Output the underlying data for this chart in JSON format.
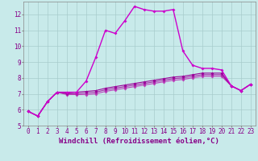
{
  "xlabel": "Windchill (Refroidissement éolien,°C)",
  "xlim": [
    -0.5,
    23.5
  ],
  "ylim": [
    5,
    12.8
  ],
  "yticks": [
    5,
    6,
    7,
    8,
    9,
    10,
    11,
    12
  ],
  "xticks": [
    0,
    1,
    2,
    3,
    4,
    5,
    6,
    7,
    8,
    9,
    10,
    11,
    12,
    13,
    14,
    15,
    16,
    17,
    18,
    19,
    20,
    21,
    22,
    23
  ],
  "background_color": "#c8eaea",
  "grid_color": "#a8cccc",
  "line_color1": "#cc00cc",
  "line_color2": "#990099",
  "line_color3": "#aa22aa",
  "line_color4": "#bb44bb",
  "line1": [
    5.9,
    5.6,
    6.5,
    7.1,
    7.1,
    7.1,
    7.8,
    9.3,
    11.0,
    10.8,
    11.6,
    12.5,
    12.3,
    12.2,
    12.2,
    12.3,
    9.7,
    8.8,
    8.6,
    8.6,
    8.5,
    7.5,
    7.2,
    7.6
  ],
  "line2": [
    5.9,
    5.6,
    6.5,
    7.1,
    7.05,
    7.1,
    7.15,
    7.2,
    7.35,
    7.45,
    7.55,
    7.65,
    7.75,
    7.85,
    7.95,
    8.05,
    8.1,
    8.2,
    8.3,
    8.3,
    8.3,
    7.5,
    7.2,
    7.6
  ],
  "line3": [
    5.9,
    5.6,
    6.5,
    7.1,
    7.0,
    7.0,
    7.05,
    7.1,
    7.25,
    7.35,
    7.45,
    7.55,
    7.65,
    7.75,
    7.85,
    7.95,
    8.0,
    8.1,
    8.2,
    8.2,
    8.2,
    7.5,
    7.2,
    7.6
  ],
  "line4": [
    5.9,
    5.6,
    6.5,
    7.1,
    6.95,
    6.95,
    6.95,
    7.0,
    7.15,
    7.25,
    7.35,
    7.45,
    7.55,
    7.65,
    7.75,
    7.85,
    7.9,
    8.0,
    8.1,
    8.1,
    8.1,
    7.5,
    7.2,
    7.6
  ],
  "tick_fontsize": 5.5,
  "xlabel_fontsize": 6.5
}
